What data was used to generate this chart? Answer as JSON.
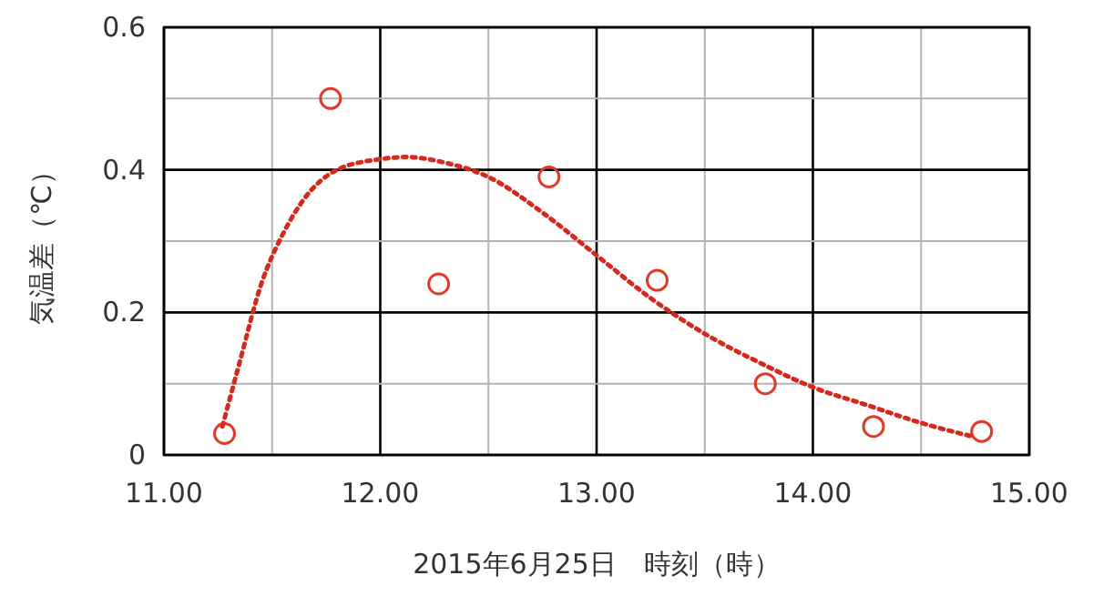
{
  "chart_data": {
    "type": "scatter",
    "xlabel": "2015年6月25日　時刻（時）",
    "ylabel": "気温差（℃）",
    "xlim": [
      11,
      15
    ],
    "ylim": [
      0,
      0.6
    ],
    "xticks": [
      {
        "value": 11,
        "label": "11.00"
      },
      {
        "value": 11.5,
        "label": null
      },
      {
        "value": 12,
        "label": "12.00"
      },
      {
        "value": 12.5,
        "label": null
      },
      {
        "value": 13,
        "label": "13.00"
      },
      {
        "value": 13.5,
        "label": null
      },
      {
        "value": 14,
        "label": "14.00"
      },
      {
        "value": 14.5,
        "label": null
      },
      {
        "value": 15,
        "label": "15.00"
      }
    ],
    "yticks": [
      0,
      {
        "value": 0.1,
        "label": null
      },
      0.2,
      {
        "value": 0.3,
        "label": null
      },
      0.4,
      {
        "value": 0.5,
        "label": null
      },
      0.6
    ],
    "grid": true,
    "series": [
      {
        "color": "#e03a2a",
        "marker": "circle",
        "x": [
          11.28,
          11.77,
          12.27,
          12.78,
          13.28,
          13.78,
          14.28,
          14.78
        ],
        "values": [
          0.03,
          0.5,
          0.24,
          0.39,
          0.245,
          0.1,
          0.04,
          0.033
        ]
      },
      {
        "type": "line",
        "color": "#d42a1e",
        "line_style": "dotted",
        "marker": "none",
        "x": [
          11.27,
          11.35,
          11.45,
          11.55,
          11.65,
          11.8,
          12.0,
          12.12,
          12.3,
          12.5,
          12.75,
          13.0,
          13.25,
          13.5,
          13.75,
          14.0,
          14.25,
          14.5,
          14.75
        ],
        "values": [
          0.04,
          0.13,
          0.24,
          0.31,
          0.36,
          0.4,
          0.415,
          0.418,
          0.41,
          0.39,
          0.34,
          0.28,
          0.22,
          0.17,
          0.13,
          0.095,
          0.07,
          0.045,
          0.025
        ]
      }
    ]
  }
}
